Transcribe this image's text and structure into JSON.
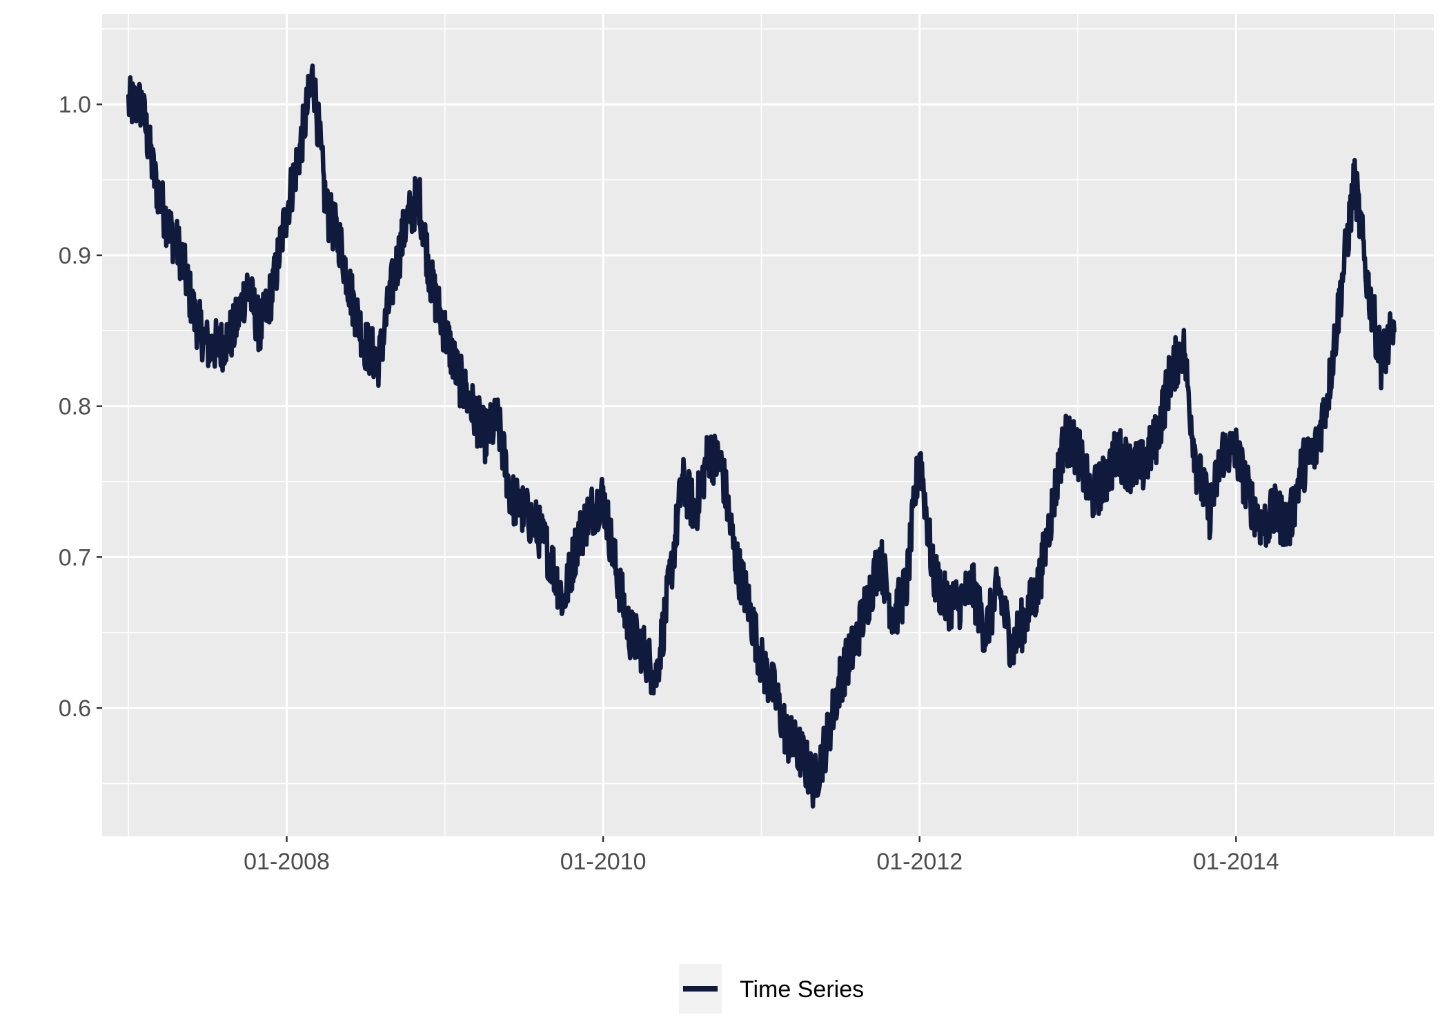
{
  "chart_data": {
    "type": "line",
    "title": "",
    "xlabel": "",
    "ylabel": "",
    "x_domain": [
      "2007-01",
      "2015-01"
    ],
    "xlim": [
      "2006-11",
      "2015-04"
    ],
    "ylim": [
      0.515,
      1.06
    ],
    "grid": true,
    "legend_position": "bottom",
    "colors": {
      "panel": "#ebebeb",
      "grid": "#ffffff",
      "line": "#0f1a3d",
      "tick_text": "#4d4d4d"
    },
    "x_ticks": [
      {
        "value": "2008-01",
        "label": "01-2008"
      },
      {
        "value": "2010-01",
        "label": "01-2010"
      },
      {
        "value": "2012-01",
        "label": "01-2012"
      },
      {
        "value": "2014-01",
        "label": "01-2014"
      }
    ],
    "y_ticks": [
      {
        "value": 0.6,
        "label": "0.6"
      },
      {
        "value": 0.7,
        "label": "0.7"
      },
      {
        "value": 0.8,
        "label": "0.8"
      },
      {
        "value": 0.9,
        "label": "0.9"
      },
      {
        "value": 1.0,
        "label": "1.0"
      }
    ],
    "series": [
      {
        "name": "Time Series",
        "x": [
          "2007-01",
          "2007-02",
          "2007-03",
          "2007-04",
          "2007-05",
          "2007-06",
          "2007-07",
          "2007-08",
          "2007-09",
          "2007-10",
          "2007-11",
          "2007-12",
          "2008-01",
          "2008-02",
          "2008-03",
          "2008-04",
          "2008-05",
          "2008-06",
          "2008-07",
          "2008-08",
          "2008-09",
          "2008-10",
          "2008-11",
          "2008-12",
          "2009-01",
          "2009-02",
          "2009-03",
          "2009-04",
          "2009-05",
          "2009-06",
          "2009-07",
          "2009-08",
          "2009-09",
          "2009-10",
          "2009-11",
          "2009-12",
          "2010-01",
          "2010-02",
          "2010-03",
          "2010-04",
          "2010-05",
          "2010-06",
          "2010-07",
          "2010-08",
          "2010-09",
          "2010-10",
          "2010-11",
          "2010-12",
          "2011-01",
          "2011-02",
          "2011-03",
          "2011-04",
          "2011-05",
          "2011-06",
          "2011-07",
          "2011-08",
          "2011-09",
          "2011-10",
          "2011-11",
          "2011-12",
          "2012-01",
          "2012-02",
          "2012-03",
          "2012-04",
          "2012-05",
          "2012-06",
          "2012-07",
          "2012-08",
          "2012-09",
          "2012-10",
          "2012-11",
          "2012-12",
          "2013-01",
          "2013-02",
          "2013-03",
          "2013-04",
          "2013-05",
          "2013-06",
          "2013-07",
          "2013-08",
          "2013-09",
          "2013-10",
          "2013-11",
          "2013-12",
          "2014-01",
          "2014-02",
          "2014-03",
          "2014-04",
          "2014-05",
          "2014-06",
          "2014-07",
          "2014-08",
          "2014-09",
          "2014-10",
          "2014-11",
          "2014-12",
          "2015-01"
        ],
        "values": [
          1.0,
          1.0,
          0.95,
          0.92,
          0.9,
          0.86,
          0.84,
          0.84,
          0.85,
          0.88,
          0.85,
          0.88,
          0.93,
          0.97,
          1.02,
          0.93,
          0.91,
          0.87,
          0.84,
          0.83,
          0.88,
          0.92,
          0.94,
          0.88,
          0.85,
          0.82,
          0.8,
          0.78,
          0.79,
          0.74,
          0.73,
          0.72,
          0.7,
          0.67,
          0.71,
          0.73,
          0.74,
          0.69,
          0.65,
          0.64,
          0.62,
          0.68,
          0.75,
          0.73,
          0.77,
          0.76,
          0.7,
          0.67,
          0.63,
          0.61,
          0.58,
          0.57,
          0.55,
          0.58,
          0.62,
          0.64,
          0.67,
          0.7,
          0.66,
          0.68,
          0.77,
          0.69,
          0.67,
          0.67,
          0.68,
          0.65,
          0.68,
          0.64,
          0.66,
          0.68,
          0.73,
          0.78,
          0.77,
          0.74,
          0.75,
          0.77,
          0.76,
          0.76,
          0.78,
          0.82,
          0.84,
          0.76,
          0.73,
          0.77,
          0.77,
          0.74,
          0.72,
          0.73,
          0.72,
          0.76,
          0.77,
          0.81,
          0.88,
          0.95,
          0.88,
          0.83,
          0.85
        ]
      }
    ]
  }
}
